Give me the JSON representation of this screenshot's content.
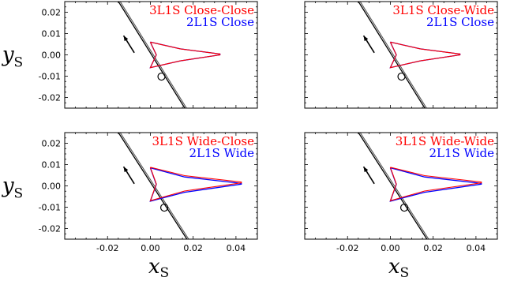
{
  "chart_data": [
    {
      "type": "line",
      "panel": "top-left",
      "xlim": [
        -0.04,
        0.05
      ],
      "ylim": [
        -0.025,
        0.025
      ],
      "xticks": [],
      "yticks": [
        "0.02",
        "0.01",
        "0.00",
        "-0.01",
        "-0.02"
      ],
      "ylabel": {
        "main": "y",
        "sub": "S"
      },
      "xlabel": {
        "main": "",
        "sub": ""
      },
      "legend": [
        "3L1S Close-Close",
        "2L1S Close"
      ],
      "legend_colors": [
        "#ff0000",
        "#0000ff"
      ],
      "caustic_variant": "close",
      "caustic_offset": 0,
      "trajectory": {
        "x": [
          -0.0145,
          0.0165
        ],
        "y": [
          0.025,
          -0.025
        ],
        "source": [
          0.0052,
          -0.0102
        ]
      }
    },
    {
      "type": "line",
      "panel": "top-right",
      "xlim": [
        -0.04,
        0.05
      ],
      "ylim": [
        -0.025,
        0.025
      ],
      "xticks": [],
      "yticks": [],
      "ylabel": {
        "main": "",
        "sub": ""
      },
      "xlabel": {
        "main": "",
        "sub": ""
      },
      "legend": [
        "3L1S Close-Wide",
        "2L1S Close"
      ],
      "legend_colors": [
        "#ff0000",
        "#0000ff"
      ],
      "caustic_variant": "close",
      "caustic_offset": 0,
      "trajectory": {
        "x": [
          -0.0145,
          0.0165
        ],
        "y": [
          0.025,
          -0.025
        ],
        "source": [
          0.0052,
          -0.0102
        ]
      }
    },
    {
      "type": "line",
      "panel": "bottom-left",
      "xlim": [
        -0.04,
        0.05
      ],
      "ylim": [
        -0.025,
        0.025
      ],
      "xticks": [
        "-0.02",
        "0.00",
        "0.02",
        "0.04"
      ],
      "yticks": [
        "0.02",
        "0.01",
        "0.00",
        "-0.01",
        "-0.02"
      ],
      "ylabel": {
        "main": "y",
        "sub": "S"
      },
      "xlabel": {
        "main": "x",
        "sub": "S"
      },
      "legend": [
        "3L1S Wide-Close",
        "2L1S Wide"
      ],
      "legend_colors": [
        "#ff0000",
        "#0000ff"
      ],
      "caustic_variant": "wide",
      "caustic_offset": 0.0006,
      "trajectory": {
        "x": [
          -0.0145,
          0.0175
        ],
        "y": [
          0.025,
          -0.025
        ],
        "source": [
          0.0065,
          -0.0102
        ]
      }
    },
    {
      "type": "line",
      "panel": "bottom-right",
      "xlim": [
        -0.04,
        0.05
      ],
      "ylim": [
        -0.025,
        0.025
      ],
      "xticks": [
        "-0.02",
        "0.00",
        "0.02",
        "0.04"
      ],
      "yticks": [],
      "ylabel": {
        "main": "",
        "sub": ""
      },
      "xlabel": {
        "main": "x",
        "sub": "S"
      },
      "legend": [
        "3L1S Wide-Wide",
        "2L1S Wide"
      ],
      "legend_colors": [
        "#ff0000",
        "#0000ff"
      ],
      "caustic_variant": "wide",
      "caustic_offset": 0.0006,
      "trajectory": {
        "x": [
          -0.0145,
          0.0175
        ],
        "y": [
          0.025,
          -0.025
        ],
        "source": [
          0.0065,
          -0.0102
        ]
      }
    }
  ]
}
